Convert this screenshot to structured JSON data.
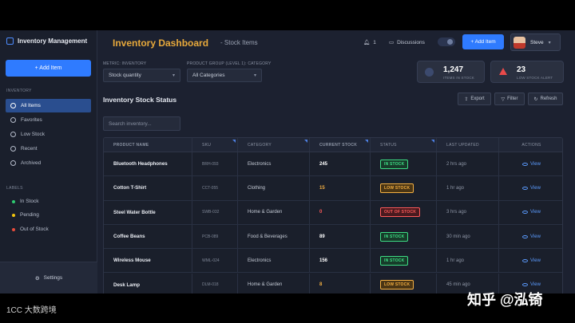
{
  "sidebar": {
    "brand": "Inventory Management",
    "add_label": "+ Add Item",
    "section_inventory": "INVENTORY",
    "items": [
      "All Items",
      "Favorites",
      "Low Stock",
      "Recent",
      "Archived"
    ],
    "section_labels": "LABELS",
    "labels": [
      {
        "label": "In Stock",
        "color": "#2ecc71"
      },
      {
        "label": "Pending",
        "color": "#f1c40f"
      },
      {
        "label": "Out of Stock",
        "color": "#e74c3c"
      }
    ],
    "settings": "Settings"
  },
  "header": {
    "title": "Inventory Dashboard",
    "subtitle": "- Stock Items",
    "notifications": "1",
    "discussions": "Discussions",
    "add_label": "+ Add Item",
    "user": "Steve"
  },
  "filters": {
    "metric_label": "METRIC: INVENTORY",
    "metric_value": "Stock quantity",
    "group_label": "PRODUCT GROUP (LEVEL 1): CATEGORY",
    "group_value": "All Categories"
  },
  "stats": [
    {
      "value": "1,247",
      "label": "ITEMS IN STOCK"
    },
    {
      "value": "23",
      "label": "LOW STOCK ALERT"
    }
  ],
  "stock": {
    "title": "Inventory Stock Status",
    "export": "Export",
    "filter": "Filter",
    "refresh": "Refresh",
    "search_placeholder": "Search inventory..."
  },
  "table": {
    "headers": [
      "PRODUCT NAME",
      "SKU",
      "CATEGORY",
      "CURRENT STOCK",
      "STATUS",
      "LAST UPDATED",
      "ACTIONS"
    ],
    "rows": [
      {
        "name": "Bluetooth Headphones",
        "sku": "BRH-093",
        "category": "Electronics",
        "stock": "245",
        "status": "IN STOCK",
        "updated": "2 hrs ago",
        "action": "View"
      },
      {
        "name": "Cotton T-Shirt",
        "sku": "CCT-055",
        "category": "Clothing",
        "stock": "15",
        "status": "LOW STOCK",
        "updated": "1 hr ago",
        "action": "View"
      },
      {
        "name": "Steel Water Bottle",
        "sku": "SWB-032",
        "category": "Home & Garden",
        "stock": "0",
        "status": "OUT OF STOCK",
        "updated": "3 hrs ago",
        "action": "View"
      },
      {
        "name": "Coffee Beans",
        "sku": "PCB-089",
        "category": "Food & Beverages",
        "stock": "89",
        "status": "IN STOCK",
        "updated": "30 min ago",
        "action": "View"
      },
      {
        "name": "Wireless Mouse",
        "sku": "WML-024",
        "category": "Electronics",
        "stock": "156",
        "status": "IN STOCK",
        "updated": "1 hr ago",
        "action": "View"
      },
      {
        "name": "Desk Lamp",
        "sku": "DLM-018",
        "category": "Home & Garden",
        "stock": "8",
        "status": "LOW STOCK",
        "updated": "45 min ago",
        "action": "View"
      }
    ]
  },
  "status_colors": {
    "IN STOCK": {
      "fg": "#3ddc84",
      "bg": "#173b2a"
    },
    "LOW STOCK": {
      "fg": "#f5b042",
      "bg": "#4a3514"
    },
    "OUT OF STOCK": {
      "fg": "#ff5a5a",
      "bg": "#4a1a1f"
    }
  },
  "watermark": {
    "left": "1CC 大数跨境",
    "right": "知乎 @泓锜"
  }
}
